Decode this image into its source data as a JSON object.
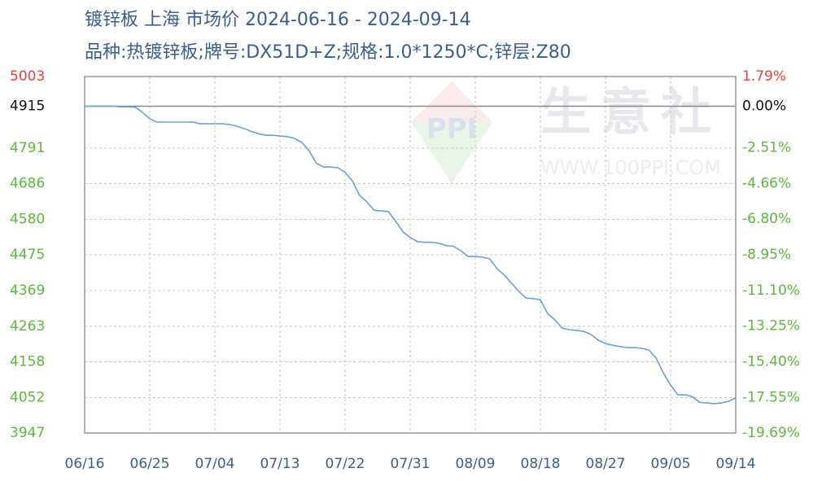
{
  "chart_data": {
    "type": "line",
    "title": "镀锌板 上海 市场价 2024-06-16 - 2024-09-14",
    "subtitle": "品种:热镀锌板;牌号:DX51D+Z;规格:1.0*1250*C;锌层:Z80",
    "watermark": [
      "生意社",
      "WWW.100PPI.COM",
      "PPI"
    ],
    "categories": [
      "06/16",
      null,
      null,
      null,
      null,
      null,
      null,
      null,
      null,
      "06/25",
      null,
      null,
      null,
      null,
      null,
      null,
      null,
      null,
      "07/04",
      null,
      null,
      null,
      null,
      null,
      null,
      null,
      null,
      "07/13",
      null,
      null,
      null,
      null,
      null,
      null,
      null,
      null,
      "07/22",
      null,
      null,
      null,
      null,
      null,
      null,
      null,
      null,
      "07/31",
      null,
      null,
      null,
      null,
      null,
      null,
      null,
      null,
      "08/09",
      null,
      null,
      null,
      null,
      null,
      null,
      null,
      null,
      "08/18",
      null,
      null,
      null,
      null,
      null,
      null,
      null,
      null,
      "08/27",
      null,
      null,
      null,
      null,
      null,
      null,
      null,
      null,
      "09/05",
      null,
      null,
      null,
      null,
      null,
      null,
      null,
      null,
      "09/14"
    ],
    "series": [
      {
        "color": "#6a9fd8",
        "values": [
          4915,
          4915,
          4915,
          4915,
          4915,
          4913,
          4913,
          4912,
          4897,
          4878,
          4868,
          4868,
          4868,
          4868,
          4868,
          4868,
          4863,
          4863,
          4863,
          4863,
          4861,
          4856,
          4849,
          4841,
          4834,
          4829,
          4829,
          4827,
          4825,
          4820,
          4808,
          4784,
          4747,
          4735,
          4735,
          4733,
          4719,
          4694,
          4651,
          4632,
          4607,
          4605,
          4603,
          4574,
          4543,
          4526,
          4514,
          4512,
          4512,
          4509,
          4502,
          4500,
          4487,
          4470,
          4470,
          4468,
          4463,
          4434,
          4415,
          4391,
          4367,
          4347,
          4345,
          4342,
          4301,
          4282,
          4258,
          4253,
          4251,
          4248,
          4239,
          4222,
          4212,
          4207,
          4203,
          4200,
          4200,
          4198,
          4193,
          4169,
          4125,
          4089,
          4060,
          4060,
          4055,
          4038,
          4036,
          4034,
          4036,
          4041,
          4051
        ]
      }
    ],
    "ylim": [
      3947,
      5003
    ],
    "yticks": [
      5003,
      4915,
      4791,
      4686,
      4580,
      4475,
      4369,
      4263,
      4158,
      4052,
      3947
    ],
    "y2lim": [
      -19.69,
      1.79
    ],
    "y2ticks": [
      {
        "value": 1.79,
        "label": "1.79%"
      },
      {
        "value": 0,
        "label": "0.00%"
      },
      {
        "value": -2.51,
        "label": "-2.51%"
      },
      {
        "value": -4.66,
        "label": "-4.66%"
      },
      {
        "value": -6.8,
        "label": "-6.80%"
      },
      {
        "value": -8.95,
        "label": "-8.95%"
      },
      {
        "value": -11.1,
        "label": "-11.10%"
      },
      {
        "value": -13.25,
        "label": "-13.25%"
      },
      {
        "value": -15.4,
        "label": "-15.40%"
      },
      {
        "value": -17.55,
        "label": "-17.55%"
      },
      {
        "value": -19.69,
        "label": "-19.69%"
      }
    ],
    "grid": true
  }
}
